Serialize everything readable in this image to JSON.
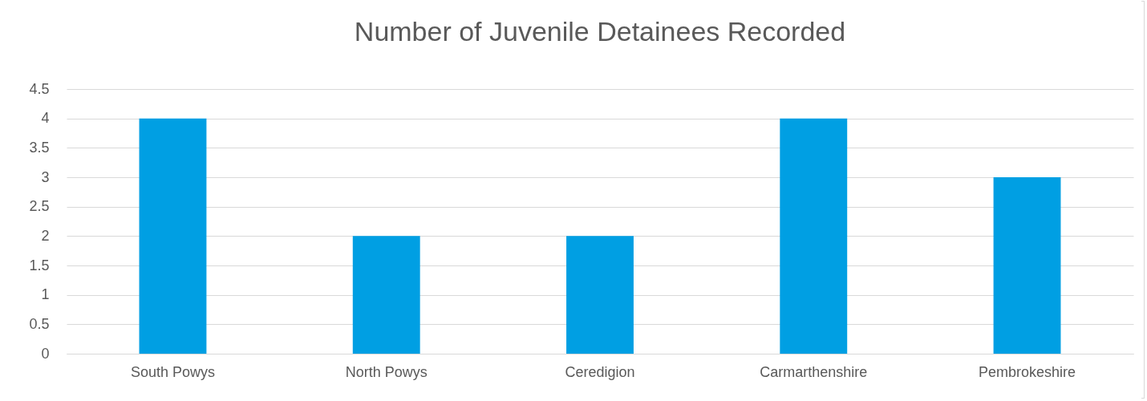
{
  "chart_data": {
    "type": "bar",
    "title": "Number of Juvenile Detainees Recorded",
    "categories": [
      "South Powys",
      "North Powys",
      "Ceredigion",
      "Carmarthenshire",
      "Pembrokeshire"
    ],
    "values": [
      4,
      2,
      2,
      4,
      3
    ],
    "color": "#009fe3",
    "ylim": [
      0,
      4.5
    ],
    "yticks": [
      0,
      0.5,
      1,
      1.5,
      2,
      2.5,
      3,
      3.5,
      4,
      4.5
    ],
    "grid": "y"
  }
}
